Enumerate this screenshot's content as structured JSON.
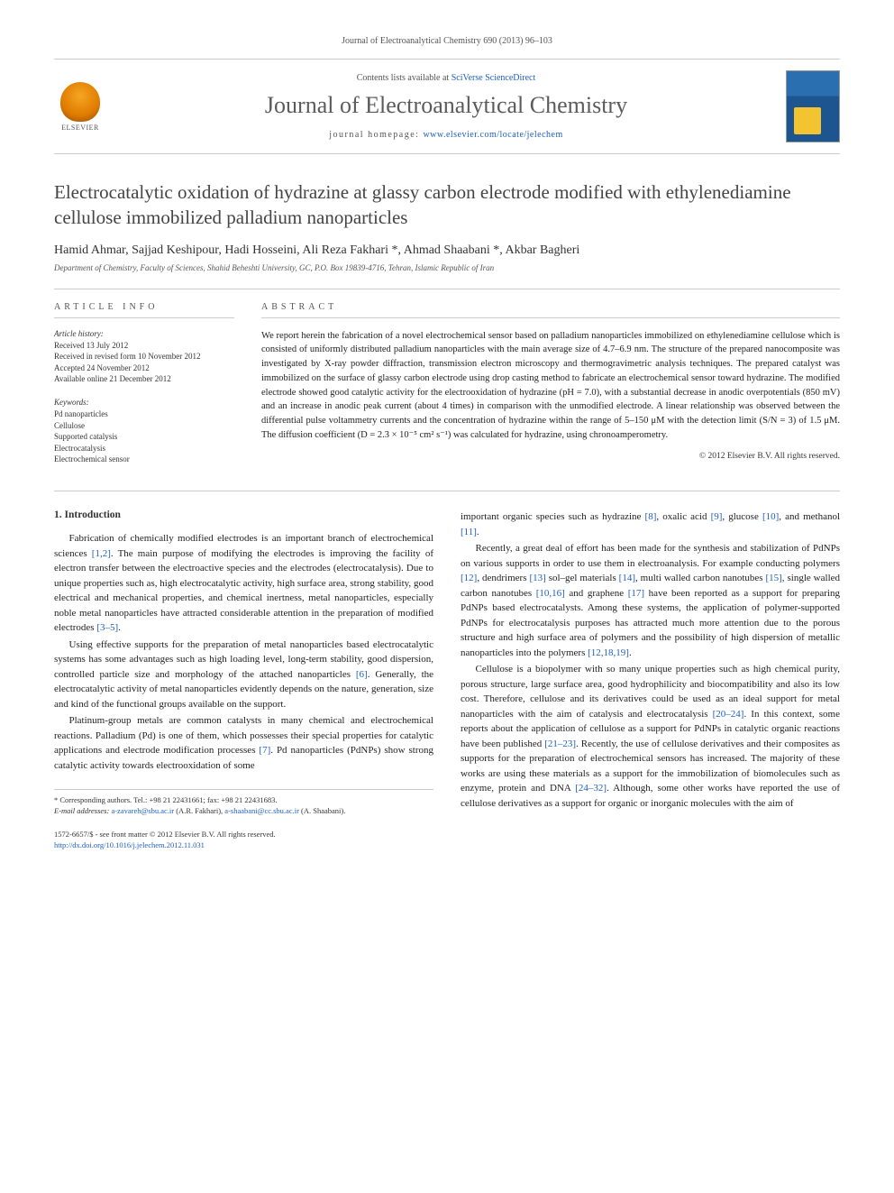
{
  "header": {
    "citation": "Journal of Electroanalytical Chemistry 690 (2013) 96–103",
    "contents_prefix": "Contents lists available at ",
    "contents_link": "SciVerse ScienceDirect",
    "journal_title": "Journal of Electroanalytical Chemistry",
    "homepage_prefix": "journal homepage: ",
    "homepage_link": "www.elsevier.com/locate/jelechem",
    "elsevier_label": "ELSEVIER"
  },
  "article": {
    "title": "Electrocatalytic oxidation of hydrazine at glassy carbon electrode modified with ethylenediamine cellulose immobilized palladium nanoparticles",
    "authors_html": "Hamid Ahmar, Sajjad Keshipour, Hadi Hosseini, Ali Reza Fakhari *, Ahmad Shaabani *, Akbar Bagheri",
    "affiliation": "Department of Chemistry, Faculty of Sciences, Shahid Beheshti University, GC, P.O. Box 19839-4716, Tehran, Islamic Republic of Iran"
  },
  "info": {
    "label": "ARTICLE INFO",
    "history_title": "Article history:",
    "history": [
      "Received 13 July 2012",
      "Received in revised form 10 November 2012",
      "Accepted 24 November 2012",
      "Available online 21 December 2012"
    ],
    "keywords_title": "Keywords:",
    "keywords": [
      "Pd nanoparticles",
      "Cellulose",
      "Supported catalysis",
      "Electrocatalysis",
      "Electrochemical sensor"
    ]
  },
  "abstract": {
    "label": "ABSTRACT",
    "text": "We report herein the fabrication of a novel electrochemical sensor based on palladium nanoparticles immobilized on ethylenediamine cellulose which is consisted of uniformly distributed palladium nanoparticles with the main average size of 4.7–6.9 nm. The structure of the prepared nanocomposite was investigated by X-ray powder diffraction, transmission electron microscopy and thermogravimetric analysis techniques. The prepared catalyst was immobilized on the surface of glassy carbon electrode using drop casting method to fabricate an electrochemical sensor toward hydrazine. The modified electrode showed good catalytic activity for the electrooxidation of hydrazine (pH = 7.0), with a substantial decrease in anodic overpotentials (850 mV) and an increase in anodic peak current (about 4 times) in comparison with the unmodified electrode. A linear relationship was observed between the differential pulse voltammetry currents and the concentration of hydrazine within the range of 5–150 μM with the detection limit (S/N = 3) of 1.5 μM. The diffusion coefficient (D = 2.3 × 10⁻⁵ cm² s⁻¹) was calculated for hydrazine, using chronoamperometry.",
    "copyright": "© 2012 Elsevier B.V. All rights reserved."
  },
  "body": {
    "section_heading": "1. Introduction",
    "left_paras": [
      "Fabrication of chemically modified electrodes is an important branch of electrochemical sciences <a>[1,2]</a>. The main purpose of modifying the electrodes is improving the facility of electron transfer between the electroactive species and the electrodes (electrocatalysis). Due to unique properties such as, high electrocatalytic activity, high surface area, strong stability, good electrical and mechanical properties, and chemical inertness, metal nanoparticles, especially noble metal nanoparticles have attracted considerable attention in the preparation of modified electrodes <a>[3–5]</a>.",
      "Using effective supports for the preparation of metal nanoparticles based electrocatalytic systems has some advantages such as high loading level, long-term stability, good dispersion, controlled particle size and morphology of the attached nanoparticles <a>[6]</a>. Generally, the electrocatalytic activity of metal nanoparticles evidently depends on the nature, generation, size and kind of the functional groups available on the support.",
      "Platinum-group metals are common catalysts in many chemical and electrochemical reactions. Palladium (Pd) is one of them, which possesses their special properties for catalytic applications and electrode modification processes <a>[7]</a>. Pd nanoparticles (PdNPs) show strong catalytic activity towards electrooxidation of some"
    ],
    "right_paras": [
      "important organic species such as hydrazine <a>[8]</a>, oxalic acid <a>[9]</a>, glucose <a>[10]</a>, and methanol <a>[11]</a>.",
      "Recently, a great deal of effort has been made for the synthesis and stabilization of PdNPs on various supports in order to use them in electroanalysis. For example conducting polymers <a>[12]</a>, dendrimers <a>[13]</a> sol–gel materials <a>[14]</a>, multi walled carbon nanotubes <a>[15]</a>, single walled carbon nanotubes <a>[10,16]</a> and graphene <a>[17]</a> have been reported as a support for preparing PdNPs based electrocatalysts. Among these systems, the application of polymer-supported PdNPs for electrocatalysis purposes has attracted much more attention due to the porous structure and high surface area of polymers and the possibility of high dispersion of metallic nanoparticles into the polymers <a>[12,18,19]</a>.",
      "Cellulose is a biopolymer with so many unique properties such as high chemical purity, porous structure, large surface area, good hydrophilicity and biocompatibility and also its low cost. Therefore, cellulose and its derivatives could be used as an ideal support for metal nanoparticles with the aim of catalysis and electrocatalysis <a>[20–24]</a>. In this context, some reports about the application of cellulose as a support for PdNPs in catalytic organic reactions have been published <a>[21–23]</a>. Recently, the use of cellulose derivatives and their composites as supports for the preparation of electrochemical sensors has increased. The majority of these works are using these materials as a support for the immobilization of biomolecules such as enzyme, protein and DNA <a>[24–32]</a>. Although, some other works have reported the use of cellulose derivatives as a support for organic or inorganic molecules with the aim of"
    ]
  },
  "footnotes": {
    "corr": "* Corresponding authors. Tel.: +98 21 22431661; fax: +98 21 22431683.",
    "email_label": "E-mail addresses:",
    "emails_html": " <a>a-zavareh@sbu.ac.ir</a> (A.R. Fakhari), <a>a-shaabani@cc.sbu.ac.ir</a> (A. Shaabani)."
  },
  "bottom": {
    "issn_line": "1572-6657/$ - see front matter © 2012 Elsevier B.V. All rights reserved.",
    "doi_line": "http://dx.doi.org/10.1016/j.jelechem.2012.11.031"
  },
  "colors": {
    "link": "#2060c0",
    "text": "#333333",
    "rule": "#cccccc"
  }
}
